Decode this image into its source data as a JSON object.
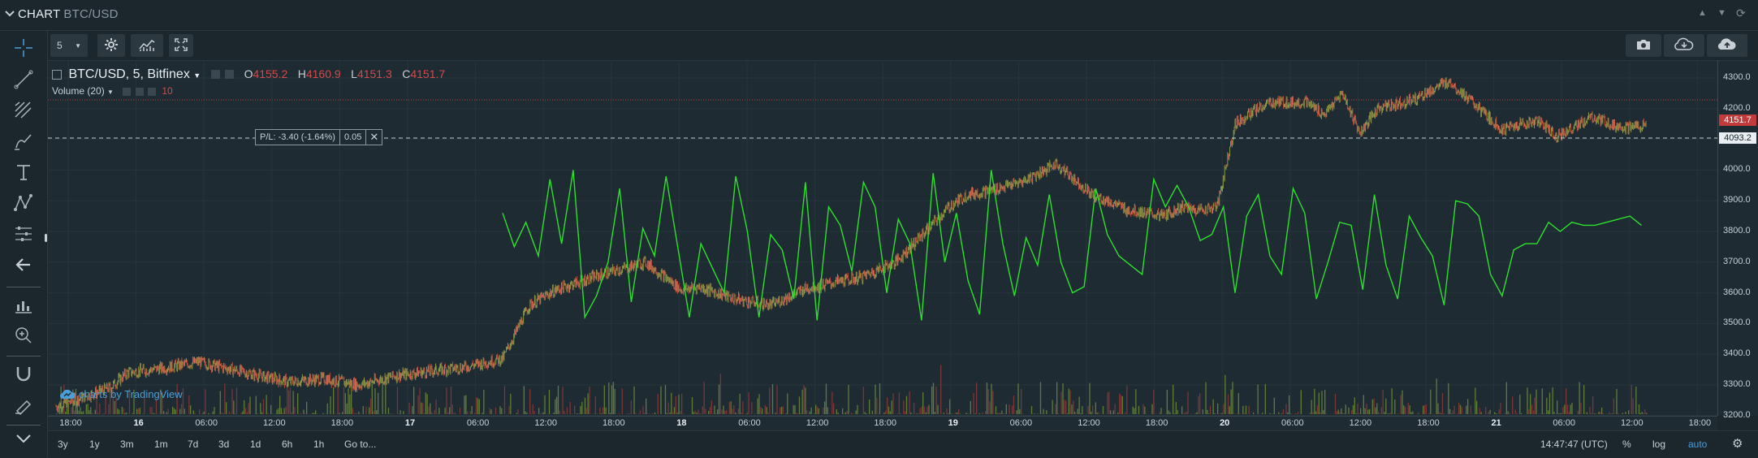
{
  "header": {
    "title": "CHART",
    "symbol": "BTC/USD"
  },
  "toolbar": {
    "interval": "5"
  },
  "legend": {
    "symbol": "BTC/USD, 5, Bitfinex",
    "open_label": "O",
    "open": "4155.2",
    "high_label": "H",
    "high": "4160.9",
    "low_label": "L",
    "low": "4151.3",
    "close_label": "C",
    "close": "4151.7",
    "volume_label": "Volume (20)",
    "volume_value": "10"
  },
  "position": {
    "pl": "P/L: -3.40 (-1.64%)",
    "qty": "0.05"
  },
  "watermark": "charts by TradingView",
  "price_axis": {
    "labels": [
      "4300.0",
      "4200.0",
      "4100.0",
      "4000.0",
      "3900.0",
      "3800.0",
      "3700.0",
      "3600.0",
      "3500.0",
      "3400.0",
      "3300.0",
      "3200.0"
    ],
    "last_price": "4151.7",
    "position_price": "4093.2"
  },
  "time_axis": [
    {
      "t": "18:00",
      "b": false
    },
    {
      "t": "16",
      "b": true
    },
    {
      "t": "06:00",
      "b": false
    },
    {
      "t": "12:00",
      "b": false
    },
    {
      "t": "18:00",
      "b": false
    },
    {
      "t": "17",
      "b": true
    },
    {
      "t": "06:00",
      "b": false
    },
    {
      "t": "12:00",
      "b": false
    },
    {
      "t": "18:00",
      "b": false
    },
    {
      "t": "18",
      "b": true
    },
    {
      "t": "06:00",
      "b": false
    },
    {
      "t": "12:00",
      "b": false
    },
    {
      "t": "18:00",
      "b": false
    },
    {
      "t": "19",
      "b": true
    },
    {
      "t": "06:00",
      "b": false
    },
    {
      "t": "12:00",
      "b": false
    },
    {
      "t": "18:00",
      "b": false
    },
    {
      "t": "20",
      "b": true
    },
    {
      "t": "06:00",
      "b": false
    },
    {
      "t": "12:00",
      "b": false
    },
    {
      "t": "18:00",
      "b": false
    },
    {
      "t": "21",
      "b": true
    },
    {
      "t": "06:00",
      "b": false
    },
    {
      "t": "12:00",
      "b": false
    },
    {
      "t": "18:00",
      "b": false
    }
  ],
  "bottom": {
    "ranges": [
      "3y",
      "1y",
      "3m",
      "1m",
      "7d",
      "3d",
      "1d",
      "6h",
      "1h",
      "Go to..."
    ],
    "time": "14:47:47 (UTC)",
    "pct": "%",
    "log": "log",
    "auto": "auto"
  },
  "colors": {
    "background": "#1e2b33",
    "candle_up": "#8a9a4a",
    "candle_down": "#c0513f",
    "indicator": "#2ee02e",
    "accent": "#4a9fd8",
    "last_price": "#c23b3b"
  },
  "chart_data": {
    "type": "line",
    "ylim": [
      3150,
      4330
    ],
    "price_series": {
      "x_hours": [
        0,
        6,
        8,
        12,
        16,
        22,
        26,
        30,
        34,
        38,
        46,
        50,
        53,
        56,
        60,
        66,
        70,
        72,
        76,
        80,
        84,
        90,
        94,
        98,
        100,
        102,
        104,
        108,
        112,
        116,
        120,
        122,
        124,
        126,
        128,
        130,
        132,
        134,
        136,
        140,
        142,
        144,
        146,
        148,
        152,
        156,
        160,
        162,
        164,
        166,
        168,
        172,
        174,
        176,
        178
      ],
      "price": [
        3230,
        3290,
        3340,
        3355,
        3375,
        3335,
        3310,
        3320,
        3300,
        3330,
        3360,
        3385,
        3560,
        3610,
        3650,
        3700,
        3610,
        3620,
        3580,
        3560,
        3615,
        3650,
        3700,
        3820,
        3880,
        3920,
        3930,
        3960,
        4020,
        3920,
        3870,
        3860,
        3850,
        3880,
        3870,
        3880,
        4150,
        4190,
        4220,
        4220,
        4180,
        4250,
        4120,
        4200,
        4230,
        4290,
        4180,
        4130,
        4150,
        4160,
        4110,
        4170,
        4150,
        4135,
        4151.7
      ]
    },
    "indicator": {
      "name": "",
      "x_hours": [
        50,
        51.3,
        52.6,
        54,
        55.3,
        56.6,
        57.9,
        59.2,
        60.5,
        61.8,
        63.1,
        64.4,
        65.7,
        67,
        68.3,
        69.6,
        70.9,
        72.2,
        73.5,
        74.8,
        76.1,
        77.4,
        78.7,
        80,
        81.3,
        82.6,
        83.9,
        85.2,
        86.5,
        87.8,
        89.1,
        90.4,
        91.7,
        93,
        94.3,
        95.6,
        96.9,
        98.2,
        99.5,
        100.8,
        102.1,
        103.4,
        104.7,
        106,
        107.3,
        108.6,
        109.9,
        111.2,
        112.5,
        113.8,
        115.1,
        116.4,
        117.7,
        119,
        120.3,
        121.6,
        122.9,
        124.2,
        125.5,
        126.8,
        128.1,
        129.4,
        130.7,
        132,
        133.3,
        134.6,
        135.9,
        137.2,
        138.5,
        139.8,
        141.1,
        142.4,
        143.7,
        145,
        146.3,
        147.6,
        148.9,
        150.2,
        151.5,
        152.8,
        154.1,
        155.4,
        156.7,
        158,
        159.3,
        160.6,
        161.9,
        163.2,
        164.5,
        165.8,
        167.1,
        168.4,
        169.7,
        171,
        172.3,
        173.6,
        174.9,
        176.2,
        177.5
      ],
      "values": [
        3860,
        3750,
        3830,
        3720,
        3970,
        3760,
        4000,
        3520,
        3590,
        3700,
        3940,
        3570,
        3810,
        3720,
        3980,
        3750,
        3520,
        3760,
        3680,
        3600,
        3980,
        3800,
        3520,
        3790,
        3740,
        3580,
        3960,
        3510,
        3880,
        3820,
        3670,
        3960,
        3880,
        3600,
        3840,
        3760,
        3510,
        3990,
        3700,
        3860,
        3640,
        3530,
        4000,
        3760,
        3590,
        3780,
        3690,
        3920,
        3700,
        3600,
        3620,
        3940,
        3790,
        3720,
        3690,
        3660,
        3970,
        3880,
        3950,
        3880,
        3770,
        3790,
        3880,
        3600,
        3850,
        3920,
        3720,
        3660,
        3940,
        3860,
        3580,
        3700,
        3830,
        3820,
        3610,
        3920,
        3690,
        3580,
        3850,
        3780,
        3720,
        3560,
        3900,
        3890,
        3850,
        3660,
        3590,
        3740,
        3760,
        3760,
        3830,
        3800,
        3830,
        3820,
        3820,
        3830,
        3840,
        3850,
        3820
      ]
    },
    "volume": {
      "ylim": [
        0,
        100
      ]
    }
  }
}
